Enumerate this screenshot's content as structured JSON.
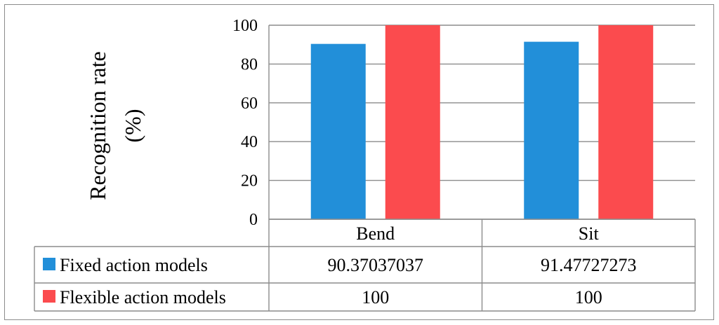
{
  "chart_data": {
    "type": "bar",
    "categories": [
      "Bend",
      "Sit"
    ],
    "series": [
      {
        "name": "Fixed action models",
        "values": [
          90.37037037,
          91.47727273
        ],
        "display": [
          "90.37037037",
          "91.47727273"
        ],
        "color": "#228fd9"
      },
      {
        "name": "Flexible action models",
        "values": [
          100,
          100
        ],
        "display": [
          "100",
          "100"
        ],
        "color": "#fb4b4e"
      }
    ],
    "title": "",
    "xlabel": "",
    "ylabel_lines": [
      "Recognition rate",
      "(%)"
    ],
    "ylim": [
      0,
      100
    ],
    "yticks": [
      0,
      20,
      40,
      60,
      80,
      100
    ],
    "grid": true,
    "legend": "data-table"
  }
}
